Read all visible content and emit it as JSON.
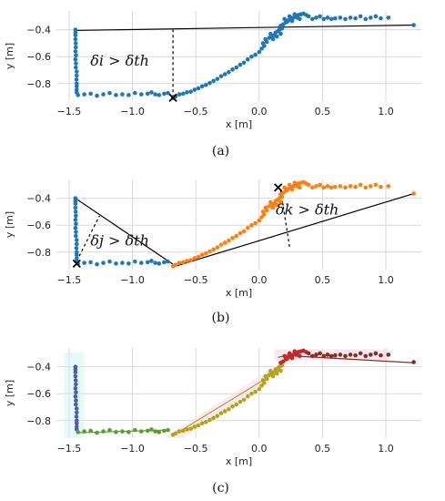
{
  "colors": {
    "blue": "#1f77b4",
    "orange": "#ff7f0e",
    "segment_blue": "#4c5ea8",
    "segment_green": "#5b9e2e",
    "segment_olive": "#b6a21a",
    "segment_red": "#c62828",
    "segment_brown": "#8b2d1c",
    "line": "#000000"
  },
  "chart_data": [
    {
      "type": "scatter",
      "caption": "(a)",
      "xlabel": "x [m]",
      "ylabel": "y [m]",
      "xlim": [
        -1.6,
        1.28
      ],
      "ylim": [
        -0.93,
        -0.26
      ],
      "xticks": [
        -1.5,
        -1.0,
        -0.5,
        0.0,
        0.5,
        1.0
      ],
      "xtick_labels": [
        "−1.5",
        "−1.0",
        "−0.5",
        "0.0",
        "0.5",
        "1.0"
      ],
      "yticks": [
        -0.4,
        -0.6,
        -0.8
      ],
      "ytick_labels": [
        "−0.4",
        "−0.6",
        "−0.8"
      ],
      "grid": true,
      "series": [
        {
          "color": "blue",
          "points": "trajectory_all"
        }
      ],
      "lines": [
        {
          "x": [
            -1.45,
            1.22
          ],
          "y": [
            -0.405,
            -0.365
          ]
        }
      ],
      "markers": [
        {
          "symbol": "x",
          "x": -0.68,
          "y": -0.905
        }
      ],
      "dashed": [
        {
          "x": [
            -0.68,
            -0.68
          ],
          "y": [
            -0.905,
            -0.4
          ]
        }
      ],
      "annotations": [
        {
          "text": "δi > δth",
          "x": -1.1,
          "y": -0.665
        }
      ]
    },
    {
      "type": "scatter",
      "caption": "(b)",
      "xlabel": "x [m]",
      "ylabel": "y [m]",
      "xlim": [
        -1.6,
        1.28
      ],
      "ylim": [
        -0.93,
        -0.26
      ],
      "xticks": [
        -1.5,
        -1.0,
        -0.5,
        0.0,
        0.5,
        1.0
      ],
      "xtick_labels": [
        "−1.5",
        "−1.0",
        "−0.5",
        "0.0",
        "0.5",
        "1.0"
      ],
      "yticks": [
        -0.4,
        -0.6,
        -0.8
      ],
      "ytick_labels": [
        "−0.4",
        "−0.6",
        "−0.8"
      ],
      "grid": true,
      "series": [
        {
          "color": "blue",
          "points": "trajectory_first"
        },
        {
          "color": "orange",
          "points": "trajectory_second"
        }
      ],
      "lines": [
        {
          "x": [
            -1.45,
            -0.68
          ],
          "y": [
            -0.4,
            -0.89
          ]
        },
        {
          "x": [
            -0.68,
            1.22
          ],
          "y": [
            -0.91,
            -0.365
          ]
        }
      ],
      "markers": [
        {
          "symbol": "x",
          "x": -1.44,
          "y": -0.885
        },
        {
          "symbol": "x",
          "x": 0.15,
          "y": -0.32
        }
      ],
      "dashed": [
        {
          "x": [
            -1.42,
            -1.26
          ],
          "y": [
            -0.83,
            -0.53
          ]
        },
        {
          "x": [
            0.17,
            0.24
          ],
          "y": [
            -0.34,
            -0.76
          ]
        }
      ],
      "annotations": [
        {
          "text": "δj > δth",
          "x": -1.1,
          "y": -0.75
        },
        {
          "text": "δk > δth",
          "x": 0.38,
          "y": -0.52
        }
      ]
    },
    {
      "type": "scatter",
      "caption": "(c)",
      "xlabel": "x [m]",
      "ylabel": "y [m]",
      "xlim": [
        -1.6,
        1.28
      ],
      "ylim": [
        -0.93,
        -0.26
      ],
      "xticks": [
        -1.5,
        -1.0,
        -0.5,
        0.0,
        0.5,
        1.0
      ],
      "xtick_labels": [
        "−1.5",
        "−1.0",
        "−0.5",
        "0.0",
        "0.5",
        "1.0"
      ],
      "yticks": [
        -0.4,
        -0.6,
        -0.8
      ],
      "ytick_labels": [
        "−0.4",
        "−0.6",
        "−0.8"
      ],
      "grid": true,
      "series": [
        {
          "color": "segment_blue",
          "points": "seg_vertical"
        },
        {
          "color": "segment_green",
          "points": "seg_bottom"
        },
        {
          "color": "segment_olive",
          "points": "seg_diagonal"
        },
        {
          "color": "segment_red",
          "points": "seg_peak"
        },
        {
          "color": "segment_brown",
          "points": "seg_tail"
        }
      ],
      "lines": [
        {
          "x": [
            -1.45,
            -1.44
          ],
          "y": [
            -0.4,
            -0.86
          ],
          "color": "segment_blue"
        },
        {
          "x": [
            -1.44,
            -0.72
          ],
          "y": [
            -0.89,
            -0.87
          ],
          "color": "segment_green"
        },
        {
          "x": [
            -0.68,
            0.17
          ],
          "y": [
            -0.91,
            -0.42
          ],
          "color": "segment_olive"
        },
        {
          "x": [
            0.15,
            0.36
          ],
          "y": [
            -0.33,
            -0.28
          ],
          "color": "segment_red"
        },
        {
          "x": [
            0.28,
            1.22
          ],
          "y": [
            -0.32,
            -0.37
          ],
          "color": "segment_brown"
        }
      ],
      "markers": [],
      "dashed": [],
      "annotations": []
    }
  ],
  "point_sets": {
    "vertical": [
      [
        -1.45,
        -0.4
      ],
      [
        -1.45,
        -0.42
      ],
      [
        -1.45,
        -0.44
      ],
      [
        -1.45,
        -0.47
      ],
      [
        -1.448,
        -0.5
      ],
      [
        -1.447,
        -0.53
      ],
      [
        -1.45,
        -0.56
      ],
      [
        -1.446,
        -0.59
      ],
      [
        -1.45,
        -0.62
      ],
      [
        -1.446,
        -0.65
      ],
      [
        -1.447,
        -0.68
      ],
      [
        -1.44,
        -0.71
      ],
      [
        -1.44,
        -0.74
      ],
      [
        -1.442,
        -0.77
      ],
      [
        -1.44,
        -0.8
      ],
      [
        -1.44,
        -0.82
      ],
      [
        -1.44,
        -0.845
      ],
      [
        -1.44,
        -0.865
      ]
    ],
    "bottom": [
      [
        -1.43,
        -0.885
      ],
      [
        -1.38,
        -0.88
      ],
      [
        -1.33,
        -0.875
      ],
      [
        -1.28,
        -0.89
      ],
      [
        -1.23,
        -0.88
      ],
      [
        -1.18,
        -0.87
      ],
      [
        -1.13,
        -0.885
      ],
      [
        -1.08,
        -0.88
      ],
      [
        -1.03,
        -0.885
      ],
      [
        -0.98,
        -0.87
      ],
      [
        -0.93,
        -0.88
      ],
      [
        -0.88,
        -0.875
      ],
      [
        -0.85,
        -0.865
      ],
      [
        -0.82,
        -0.88
      ],
      [
        -0.79,
        -0.885
      ],
      [
        -0.75,
        -0.875
      ],
      [
        -0.72,
        -0.87
      ]
    ],
    "diagonal": [
      [
        -0.68,
        -0.905
      ],
      [
        -0.66,
        -0.895
      ],
      [
        -0.63,
        -0.88
      ],
      [
        -0.6,
        -0.875
      ],
      [
        -0.57,
        -0.865
      ],
      [
        -0.54,
        -0.86
      ],
      [
        -0.51,
        -0.845
      ],
      [
        -0.48,
        -0.835
      ],
      [
        -0.45,
        -0.82
      ],
      [
        -0.42,
        -0.81
      ],
      [
        -0.39,
        -0.795
      ],
      [
        -0.36,
        -0.78
      ],
      [
        -0.33,
        -0.765
      ],
      [
        -0.3,
        -0.745
      ],
      [
        -0.27,
        -0.73
      ],
      [
        -0.24,
        -0.715
      ],
      [
        -0.21,
        -0.695
      ],
      [
        -0.18,
        -0.68
      ],
      [
        -0.15,
        -0.66
      ],
      [
        -0.12,
        -0.645
      ],
      [
        -0.09,
        -0.62
      ],
      [
        -0.06,
        -0.6
      ],
      [
        -0.03,
        -0.585
      ],
      [
        0.0,
        -0.565
      ],
      [
        0.02,
        -0.54
      ],
      [
        0.04,
        -0.52
      ],
      [
        0.03,
        -0.5
      ],
      [
        0.06,
        -0.49
      ],
      [
        0.05,
        -0.47
      ],
      [
        0.08,
        -0.46
      ],
      [
        0.1,
        -0.45
      ],
      [
        0.09,
        -0.43
      ],
      [
        0.12,
        -0.44
      ],
      [
        0.13,
        -0.42
      ],
      [
        0.15,
        -0.41
      ],
      [
        0.17,
        -0.43
      ],
      [
        0.14,
        -0.45
      ],
      [
        0.11,
        -0.47
      ],
      [
        0.16,
        -0.4
      ],
      [
        0.18,
        -0.39
      ]
    ],
    "peak": [
      [
        0.17,
        -0.37
      ],
      [
        0.19,
        -0.36
      ],
      [
        0.21,
        -0.345
      ],
      [
        0.23,
        -0.33
      ],
      [
        0.25,
        -0.32
      ],
      [
        0.22,
        -0.34
      ],
      [
        0.27,
        -0.31
      ],
      [
        0.29,
        -0.3
      ],
      [
        0.31,
        -0.29
      ],
      [
        0.33,
        -0.285
      ],
      [
        0.3,
        -0.31
      ],
      [
        0.35,
        -0.28
      ],
      [
        0.37,
        -0.29
      ],
      [
        0.32,
        -0.32
      ],
      [
        0.26,
        -0.335
      ],
      [
        0.2,
        -0.32
      ],
      [
        0.24,
        -0.3
      ],
      [
        0.28,
        -0.285
      ]
    ],
    "tail": [
      [
        0.39,
        -0.3
      ],
      [
        0.42,
        -0.32
      ],
      [
        0.45,
        -0.31
      ],
      [
        0.48,
        -0.3
      ],
      [
        0.51,
        -0.32
      ],
      [
        0.54,
        -0.31
      ],
      [
        0.57,
        -0.32
      ],
      [
        0.6,
        -0.315
      ],
      [
        0.64,
        -0.31
      ],
      [
        0.68,
        -0.32
      ],
      [
        0.72,
        -0.31
      ],
      [
        0.76,
        -0.315
      ],
      [
        0.8,
        -0.3
      ],
      [
        0.84,
        -0.32
      ],
      [
        0.88,
        -0.31
      ],
      [
        0.92,
        -0.3
      ],
      [
        0.96,
        -0.315
      ],
      [
        1.02,
        -0.31
      ],
      [
        1.22,
        -0.365
      ]
    ]
  }
}
